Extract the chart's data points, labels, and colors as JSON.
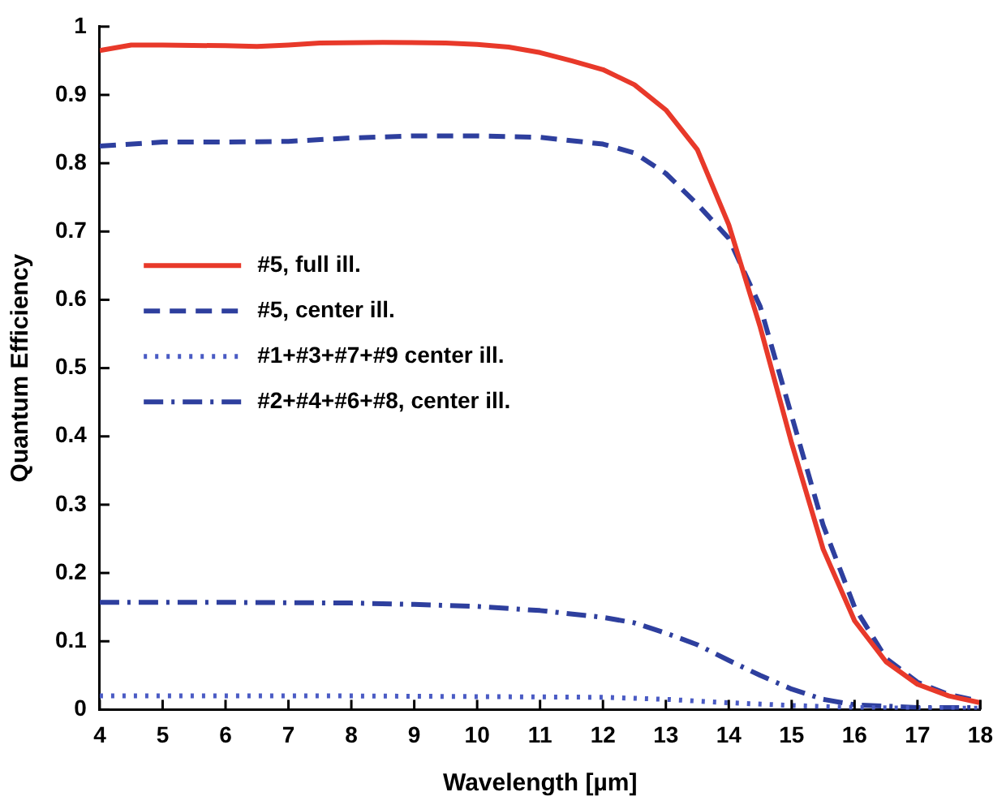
{
  "chart_data": {
    "type": "line",
    "xlabel": "Wavelength [µm]",
    "ylabel": "Quantum Efficiency",
    "xlim": [
      4,
      18
    ],
    "xticks": [
      4,
      5,
      6,
      7,
      8,
      9,
      10,
      11,
      12,
      13,
      14,
      15,
      16,
      17,
      18
    ],
    "ylim": [
      0,
      1
    ],
    "yticks": [
      0,
      0.1,
      0.2,
      0.3,
      0.4,
      0.5,
      0.6,
      0.7,
      0.8,
      0.9,
      1
    ],
    "grid": false,
    "legend": "left",
    "marker": "none",
    "series": [
      {
        "name": "#5, full ill.",
        "color": "#e8392a",
        "line_style": "solid",
        "x": [
          4,
          4.5,
          5,
          6,
          6.5,
          7,
          7.5,
          8.5,
          9.5,
          10,
          10.5,
          11,
          11.5,
          12,
          12.5,
          13,
          13.5,
          14,
          14.5,
          15,
          15.5,
          16,
          16.5,
          17,
          17.5,
          18
        ],
        "values": [
          0.965,
          0.973,
          0.973,
          0.972,
          0.971,
          0.973,
          0.976,
          0.977,
          0.976,
          0.974,
          0.97,
          0.962,
          0.95,
          0.937,
          0.915,
          0.878,
          0.82,
          0.71,
          0.56,
          0.39,
          0.235,
          0.13,
          0.07,
          0.037,
          0.02,
          0.01
        ]
      },
      {
        "name": "#5, center ill.",
        "color": "#2e3f9e",
        "line_style": "dashed",
        "x": [
          4,
          5,
          6,
          7,
          8,
          9,
          10,
          11,
          12,
          12.5,
          13,
          13.5,
          14,
          14.5,
          15,
          15.5,
          16,
          16.5,
          17,
          17.5,
          18
        ],
        "values": [
          0.825,
          0.831,
          0.831,
          0.832,
          0.837,
          0.84,
          0.84,
          0.838,
          0.828,
          0.815,
          0.785,
          0.74,
          0.69,
          0.59,
          0.43,
          0.27,
          0.15,
          0.075,
          0.04,
          0.022,
          0.012
        ]
      },
      {
        "name": "#1+#3+#7+#9 center ill.",
        "color": "#4a5bc4",
        "line_style": "dotted",
        "x": [
          4,
          6,
          8,
          10,
          12,
          13,
          14,
          15,
          16,
          17,
          18
        ],
        "values": [
          0.02,
          0.02,
          0.02,
          0.019,
          0.018,
          0.015,
          0.01,
          0.006,
          0.003,
          0.002,
          0.002
        ]
      },
      {
        "name": "#2+#4+#6+#8, center ill.",
        "color": "#2e3f9e",
        "line_style": "dashdot",
        "x": [
          4,
          6,
          8,
          9,
          10,
          11,
          12,
          12.5,
          13,
          13.5,
          14,
          14.5,
          15,
          15.5,
          16,
          17,
          18
        ],
        "values": [
          0.157,
          0.157,
          0.156,
          0.154,
          0.151,
          0.145,
          0.135,
          0.127,
          0.112,
          0.095,
          0.072,
          0.05,
          0.03,
          0.015,
          0.007,
          0.003,
          0.003
        ]
      }
    ]
  }
}
